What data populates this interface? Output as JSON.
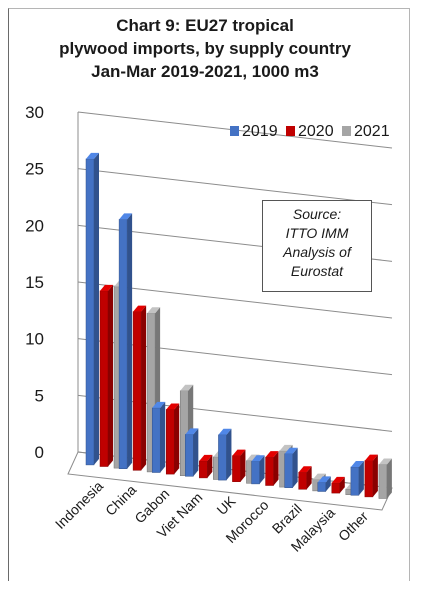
{
  "title_lines": [
    "Chart 9: EU27 tropical",
    "plywood imports, by supply country",
    "Jan-Mar 2019-2021, 1000 m3"
  ],
  "source_lines": [
    "Source:",
    "ITTO IMM",
    "Analysis of",
    "Eurostat"
  ],
  "chart_data": {
    "type": "bar",
    "title": "Chart 9: EU27 tropical plywood imports, by supply country Jan-Mar 2019-2021, 1000 m3",
    "categories": [
      "Indonesia",
      "China",
      "Gabon",
      "Viet Nam",
      "UK",
      "Morocco",
      "Brazil",
      "Malaysia",
      "Other"
    ],
    "series": [
      {
        "name": "2019",
        "color": "#4472c4",
        "values": [
          27.0,
          22.0,
          5.7,
          3.7,
          4.0,
          2.0,
          3.0,
          0.8,
          2.5
        ]
      },
      {
        "name": "2020",
        "color": "#c00000",
        "values": [
          15.5,
          14.0,
          5.7,
          1.5,
          2.3,
          2.5,
          1.5,
          0.9,
          3.2
        ]
      },
      {
        "name": "2021",
        "color": "#a5a5a5",
        "values": [
          16.0,
          14.0,
          7.5,
          2.0,
          2.0,
          3.2,
          1.0,
          0.5,
          3.0
        ]
      }
    ],
    "ylim": [
      0,
      30
    ],
    "yticks": [
      0,
      5,
      10,
      15,
      20,
      25,
      30
    ],
    "legend_position": "top-right",
    "grid": true,
    "style": "3d-clustered-column"
  }
}
